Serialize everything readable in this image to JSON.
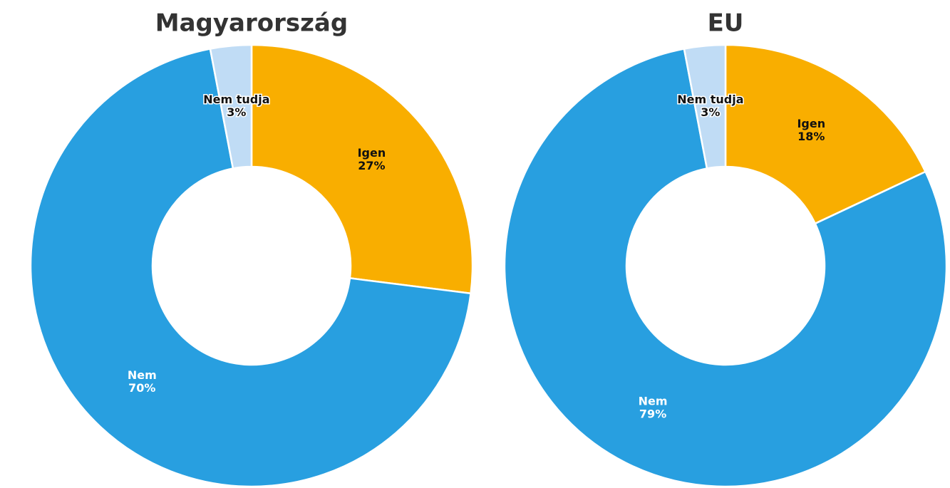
{
  "chart_data": [
    {
      "type": "donut",
      "title": "Magyarország",
      "categories": [
        "Igen",
        "Nem",
        "Nem tudja"
      ],
      "values": [
        27,
        70,
        3
      ],
      "value_labels": [
        "27%",
        "70%",
        "3%"
      ],
      "colors": [
        "#f9ae00",
        "#289fe0",
        "#c0dcf5"
      ]
    },
    {
      "type": "donut",
      "title": "EU",
      "categories": [
        "Igen",
        "Nem",
        "Nem tudja"
      ],
      "values": [
        18,
        79,
        3
      ],
      "value_labels": [
        "18%",
        "79%",
        "3%"
      ],
      "colors": [
        "#f9ae00",
        "#289fe0",
        "#c0dcf5"
      ]
    }
  ]
}
